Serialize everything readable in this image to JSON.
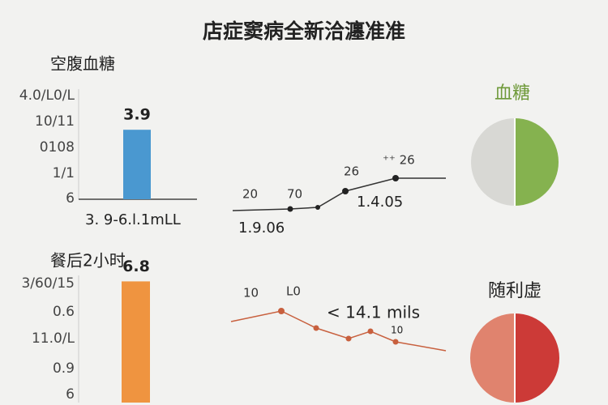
{
  "title": "店症窦病全新洽瀍准准",
  "fasting": {
    "label": "空腹血糖",
    "value": 3.9,
    "axis_labels": [
      "4.0/L0/L",
      "10/11",
      "0108",
      "1/1",
      "6"
    ],
    "caption": "3. 9-6.l.1mLL"
  },
  "postmeal": {
    "label": "餐后2小时",
    "value": 6.8,
    "axis_labels": [
      "3/60/15",
      "0.6",
      "11.0/L",
      "0.9",
      "6"
    ]
  },
  "trend1": {
    "labels": [
      "20",
      "70",
      "26",
      "⁺⁺  26",
      "1.4.05",
      "1.9.06"
    ]
  },
  "trend2": {
    "labels": [
      "10",
      "L0",
      "< 14.1 mils",
      "10"
    ]
  },
  "pie1": {
    "label": "血糖"
  },
  "pie2": {
    "label": "随利虚"
  }
}
